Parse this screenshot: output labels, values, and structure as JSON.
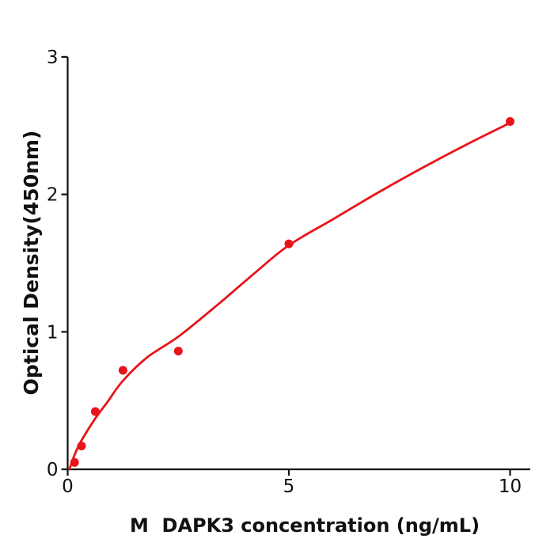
{
  "chart_data": {
    "type": "scatter",
    "title": "",
    "xlabel": "M  DAPK3 concentration (ng/mL)",
    "ylabel": "Optical Density(450nm)",
    "x_ticks": [
      "0",
      "5",
      "10"
    ],
    "x_tick_values": [
      0,
      5,
      10
    ],
    "y_ticks": [
      "0",
      "1",
      "2",
      "3"
    ],
    "y_tick_values": [
      0,
      1,
      2,
      3
    ],
    "xlim": [
      0,
      10.45
    ],
    "ylim": [
      0,
      3
    ],
    "grid": false,
    "legend": "none",
    "marker_color": "#e8141a",
    "curve_color": "#e8141a",
    "axis_color": "#111111",
    "points": [
      {
        "x": 0.156,
        "y": 0.05
      },
      {
        "x": 0.313,
        "y": 0.17
      },
      {
        "x": 0.625,
        "y": 0.42
      },
      {
        "x": 1.25,
        "y": 0.72
      },
      {
        "x": 2.5,
        "y": 0.86
      },
      {
        "x": 5,
        "y": 1.64
      },
      {
        "x": 10,
        "y": 2.53
      }
    ],
    "fit_curve_points": [
      {
        "x": 0.04,
        "y": 0.0
      },
      {
        "x": 0.156,
        "y": 0.105
      },
      {
        "x": 0.313,
        "y": 0.21
      },
      {
        "x": 0.625,
        "y": 0.37
      },
      {
        "x": 0.9,
        "y": 0.49
      },
      {
        "x": 1.25,
        "y": 0.645
      },
      {
        "x": 1.8,
        "y": 0.815
      },
      {
        "x": 2.5,
        "y": 0.965
      },
      {
        "x": 3.4,
        "y": 1.2
      },
      {
        "x": 4.2,
        "y": 1.42
      },
      {
        "x": 5.0,
        "y": 1.63
      },
      {
        "x": 6.0,
        "y": 1.82
      },
      {
        "x": 7.0,
        "y": 2.01
      },
      {
        "x": 8.0,
        "y": 2.19
      },
      {
        "x": 9.0,
        "y": 2.36
      },
      {
        "x": 10.0,
        "y": 2.52
      }
    ]
  }
}
